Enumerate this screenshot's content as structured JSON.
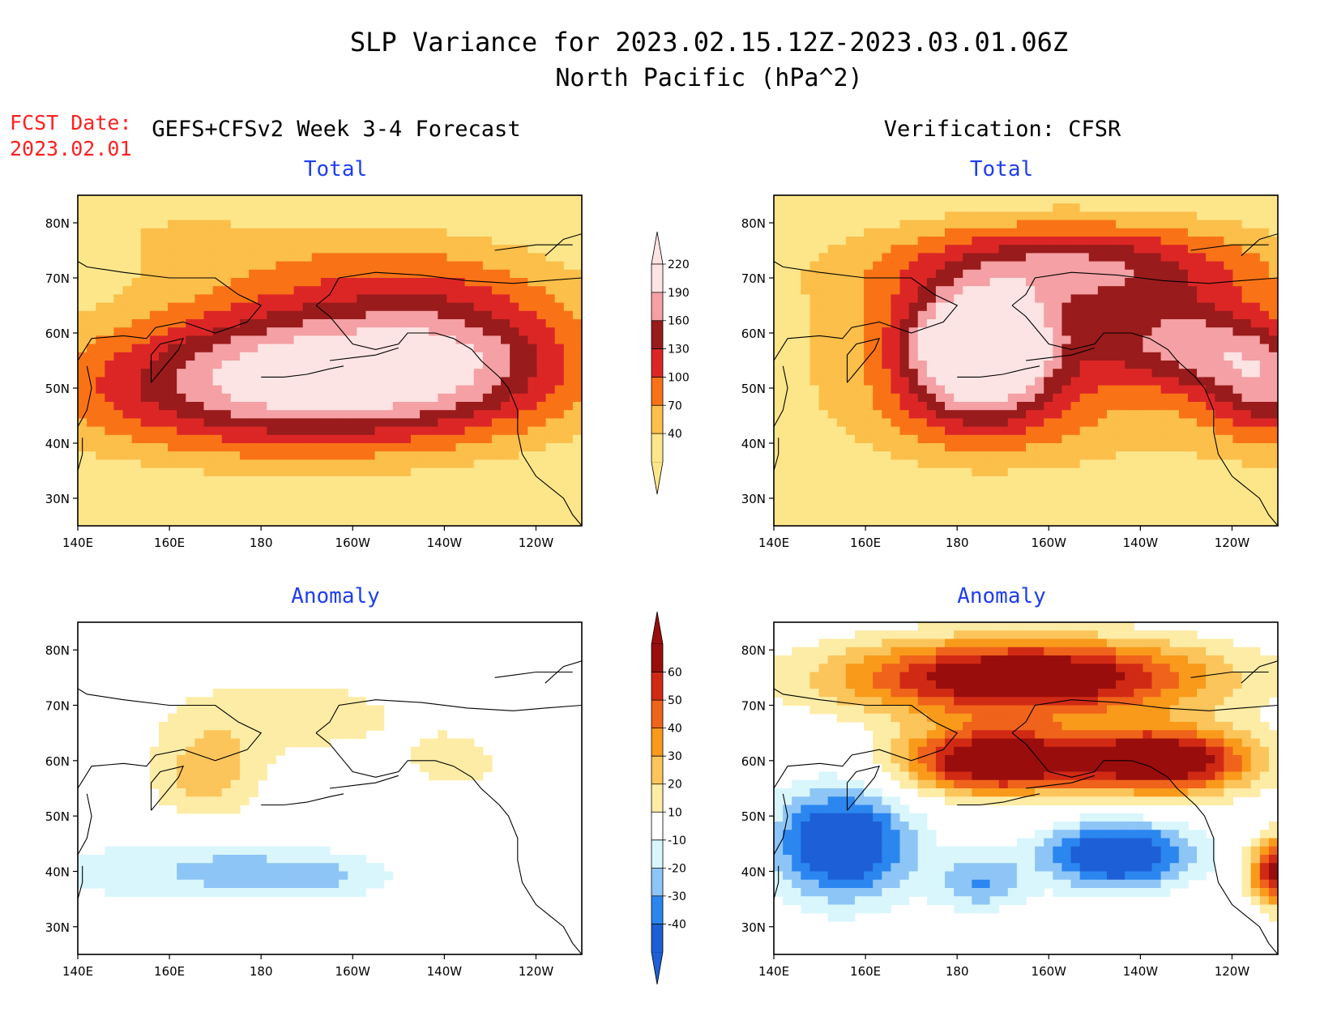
{
  "title": {
    "line1": "SLP Variance for 2023.02.15.12Z-2023.03.01.06Z",
    "line2": "North Pacific (hPa^2)"
  },
  "forecast": {
    "date_label": "FCST Date:",
    "date_value": "2023.02.01"
  },
  "columns": {
    "left": "GEFS+CFSv2 Week 3-4 Forecast",
    "right": "Verification: CFSR"
  },
  "panel_titles": {
    "total": "Total",
    "anomaly": "Anomaly"
  },
  "axes": {
    "lon_ticks": [
      "140E",
      "160E",
      "180",
      "160W",
      "140W",
      "120W"
    ],
    "lon_values": [
      140,
      160,
      180,
      200,
      220,
      240
    ],
    "lat_ticks": [
      "30N",
      "40N",
      "50N",
      "60N",
      "70N",
      "80N"
    ],
    "lat_values": [
      30,
      40,
      50,
      60,
      70,
      80
    ],
    "lon_range": [
      140,
      250
    ],
    "lat_range": [
      25,
      85
    ]
  },
  "colorbars": {
    "total": {
      "levels": [
        "40",
        "70",
        "100",
        "130",
        "160",
        "190",
        "220"
      ],
      "colors": [
        "#fde68a",
        "#fbbf4a",
        "#f97316",
        "#dc2626",
        "#991b1b",
        "#f4a0a4",
        "#fde4e4"
      ]
    },
    "anomaly": {
      "levels": [
        "-40",
        "-30",
        "-20",
        "-10",
        "10",
        "20",
        "30",
        "40",
        "50",
        "60"
      ],
      "colors": [
        "#1d5fd6",
        "#2b86f0",
        "#8ec5f7",
        "#d9f6fd",
        "#ffffff",
        "#fdeca6",
        "#fbc55b",
        "#f99a1b",
        "#f0631a",
        "#d12a14",
        "#9a0d0d"
      ]
    }
  },
  "chart_data": [
    {
      "type": "heatmap",
      "panel": "forecast-total",
      "title": "Total",
      "units": "hPa^2",
      "x": [
        140,
        160,
        180,
        200,
        220,
        240
      ],
      "y": [
        30,
        40,
        50,
        60,
        70,
        80
      ],
      "fields": [
        {
          "lon": 187,
          "lat": 50,
          "slon": 50,
          "slat": 12,
          "amp": 175
        },
        {
          "lon": 180,
          "lat": 58,
          "slon": 28,
          "slat": 10,
          "amp": 40
        },
        {
          "lon": 222,
          "lat": 57,
          "slon": 30,
          "slat": 12,
          "amp": 105
        },
        {
          "lon": 205,
          "lat": 70,
          "slon": 40,
          "slat": 10,
          "amp": 55
        },
        {
          "lon": 150,
          "lat": 80,
          "slon": 40,
          "slat": 10,
          "amp": 25
        }
      ],
      "background": 40
    },
    {
      "type": "heatmap",
      "panel": "verification-total",
      "title": "Total",
      "units": "hPa^2",
      "x": [
        140,
        160,
        180,
        200,
        220,
        240
      ],
      "y": [
        30,
        40,
        50,
        60,
        70,
        80
      ],
      "fields": [
        {
          "lon": 185,
          "lat": 58,
          "slon": 16,
          "slat": 9,
          "amp": 250
        },
        {
          "lon": 185,
          "lat": 46,
          "slon": 20,
          "slat": 8,
          "amp": 70
        },
        {
          "lon": 205,
          "lat": 72,
          "slon": 40,
          "slat": 8,
          "amp": 130
        },
        {
          "lon": 230,
          "lat": 58,
          "slon": 20,
          "slat": 8,
          "amp": 110
        },
        {
          "lon": 248,
          "lat": 50,
          "slon": 14,
          "slat": 10,
          "amp": 120
        },
        {
          "lon": 200,
          "lat": 55,
          "slon": 60,
          "slat": 20,
          "amp": 60
        }
      ],
      "background": 40
    },
    {
      "type": "heatmap",
      "panel": "forecast-anomaly",
      "title": "Anomaly",
      "units": "hPa^2",
      "x": [
        140,
        160,
        180,
        200,
        220,
        240
      ],
      "y": [
        30,
        40,
        50,
        60,
        70,
        80
      ],
      "fields": [
        {
          "lon": 168,
          "lat": 57,
          "slon": 12,
          "slat": 8,
          "amp": 25
        },
        {
          "lon": 185,
          "lat": 68,
          "slon": 28,
          "slat": 7,
          "amp": 18
        },
        {
          "lon": 222,
          "lat": 60,
          "slon": 10,
          "slat": 5,
          "amp": 18
        },
        {
          "lon": 165,
          "lat": 40,
          "slon": 35,
          "slat": 6,
          "amp": -20
        },
        {
          "lon": 195,
          "lat": 39,
          "slon": 14,
          "slat": 4,
          "amp": -14
        },
        {
          "lon": 175,
          "lat": 40,
          "slon": 8,
          "slat": 3,
          "amp": -10
        }
      ],
      "background": 0
    },
    {
      "type": "heatmap",
      "panel": "verification-anomaly",
      "title": "Anomaly",
      "units": "hPa^2",
      "x": [
        140,
        160,
        180,
        200,
        220,
        240
      ],
      "y": [
        30,
        40,
        50,
        60,
        70,
        80
      ],
      "fields": [
        {
          "lon": 195,
          "lat": 75,
          "slon": 40,
          "slat": 7,
          "amp": 80
        },
        {
          "lon": 188,
          "lat": 60,
          "slon": 20,
          "slat": 6,
          "amp": 80
        },
        {
          "lon": 225,
          "lat": 60,
          "slon": 20,
          "slat": 6,
          "amp": 80
        },
        {
          "lon": 250,
          "lat": 40,
          "slon": 6,
          "slat": 6,
          "amp": 70
        },
        {
          "lon": 155,
          "lat": 45,
          "slon": 15,
          "slat": 10,
          "amp": -60
        },
        {
          "lon": 215,
          "lat": 43,
          "slon": 16,
          "slat": 6,
          "amp": -60
        },
        {
          "lon": 185,
          "lat": 38,
          "slon": 10,
          "slat": 5,
          "amp": -30
        }
      ],
      "background": 0
    }
  ]
}
